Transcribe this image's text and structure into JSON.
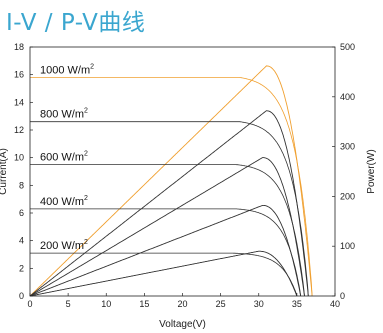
{
  "title": "I-V / P-V曲线",
  "colors": {
    "iv": "#333333",
    "pv_main": "#555555",
    "pv_top": "#f0a030",
    "title": "#3aa6cf"
  },
  "chart_data": {
    "type": "line",
    "xlabel": "Voltage(V)",
    "ylabel_left": "Current(A)",
    "ylabel_right": "Power(W)",
    "xlim": [
      0,
      40
    ],
    "ylim_left": [
      0,
      18
    ],
    "ylim_right": [
      0,
      500
    ],
    "x_ticks": [
      "0",
      "5",
      "10",
      "15",
      "20",
      "25",
      "30",
      "35",
      "40"
    ],
    "y_left_ticks": [
      "0",
      "2",
      "4",
      "6",
      "8",
      "10",
      "12",
      "14",
      "16",
      "18"
    ],
    "y_right_ticks": [
      "0",
      "100",
      "200",
      "300",
      "400",
      "500"
    ],
    "grid": false,
    "series": [
      {
        "label": "1000 W/m",
        "label_sup": "2",
        "isc": 15.8,
        "voc": 37.0,
        "vmp": 31.0,
        "pmax": 462,
        "color": "#f0a030"
      },
      {
        "label": "800 W/m",
        "label_sup": "2",
        "isc": 12.6,
        "voc": 36.5,
        "vmp": 31.0,
        "pmax": 372,
        "color": "#333333"
      },
      {
        "label": "600 W/m",
        "label_sup": "2",
        "isc": 9.5,
        "voc": 36.0,
        "vmp": 30.5,
        "pmax": 278,
        "color": "#333333"
      },
      {
        "label": "400 W/m",
        "label_sup": "2",
        "isc": 6.3,
        "voc": 35.5,
        "vmp": 30.5,
        "pmax": 182,
        "color": "#333333"
      },
      {
        "label": "200 W/m",
        "label_sup": "2",
        "isc": 3.1,
        "voc": 35.0,
        "vmp": 30.0,
        "pmax": 90,
        "color": "#333333"
      }
    ]
  }
}
